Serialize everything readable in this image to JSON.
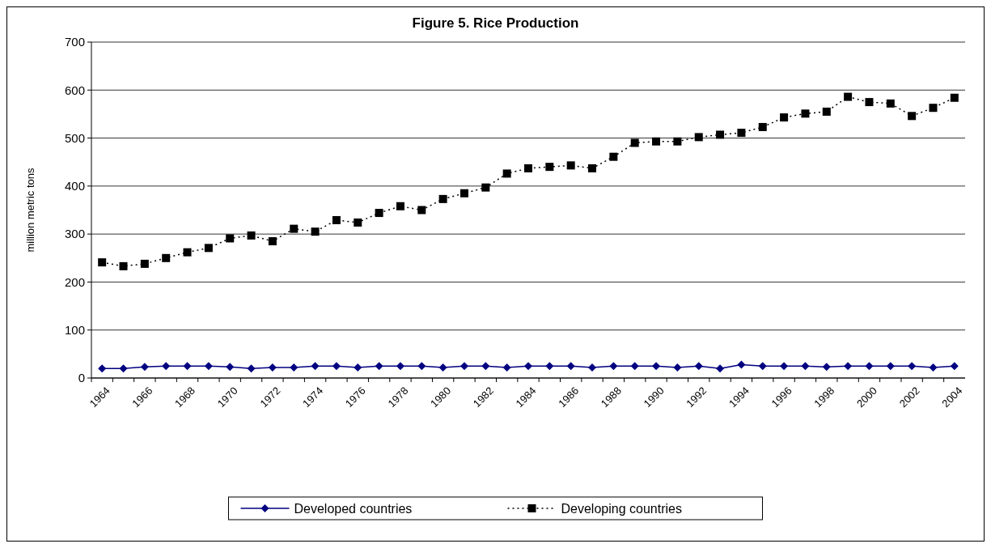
{
  "chart_data": {
    "type": "line",
    "title": "Figure 5. Rice Production",
    "ylabel": "million metric tons",
    "categories": [
      "1964",
      null,
      "1966",
      null,
      "1968",
      null,
      "1970",
      null,
      "1972",
      null,
      "1974",
      null,
      "1976",
      null,
      "1978",
      null,
      "1980",
      null,
      "1982",
      null,
      "1984",
      null,
      "1986",
      null,
      "1988",
      null,
      "1990",
      null,
      "1992",
      null,
      "1994",
      null,
      "1996",
      null,
      "1998",
      null,
      "2000",
      null,
      "2002",
      null,
      "2004"
    ],
    "series": [
      {
        "name": "Developed countries",
        "color": "#000080",
        "marker": "diamond",
        "line_style": "solid",
        "values": [
          20,
          20,
          23,
          25,
          25,
          25,
          23,
          20,
          22,
          22,
          25,
          25,
          22,
          25,
          25,
          25,
          22,
          25,
          25,
          22,
          25,
          25,
          25,
          22,
          25,
          25,
          25,
          22,
          25,
          20,
          28,
          25,
          25,
          25,
          23,
          25,
          25,
          25,
          25,
          22,
          25
        ]
      },
      {
        "name": "Developing countries",
        "color": "#000000",
        "marker": "square",
        "line_style": "dotted",
        "values": [
          241,
          233,
          238,
          250,
          262,
          271,
          291,
          297,
          285,
          311,
          305,
          329,
          324,
          344,
          358,
          350,
          373,
          385,
          397,
          426,
          437,
          440,
          443,
          437,
          461,
          490,
          493,
          493,
          502,
          507,
          511,
          523,
          543,
          551,
          555,
          586,
          575,
          572,
          546,
          563,
          584
        ]
      }
    ],
    "ylim": [
      0,
      700
    ],
    "yticks": [
      0,
      100,
      200,
      300,
      400,
      500,
      600,
      700
    ],
    "grid": "y",
    "legend": "bottom"
  }
}
